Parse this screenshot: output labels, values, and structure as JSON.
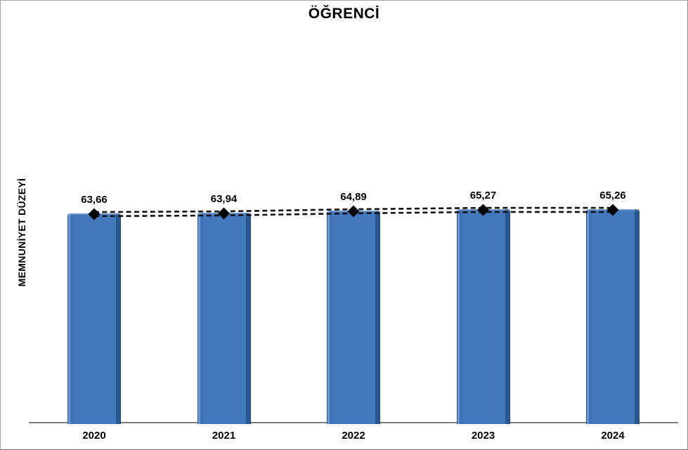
{
  "chart_data": {
    "type": "bar",
    "title": "ÖĞRENCİ",
    "ylabel": "MEMNUNİYET DÜZEYİ",
    "xlabel": "",
    "categories": [
      "2020",
      "2021",
      "2022",
      "2023",
      "2024"
    ],
    "values": [
      63.66,
      63.94,
      64.89,
      65.27,
      65.26
    ],
    "value_labels": [
      "63,66",
      "63,94",
      "64,89",
      "65,27",
      "65,26"
    ],
    "overlay_line": {
      "type": "line",
      "style": "double-dashed",
      "marker": "diamond",
      "values": [
        63.66,
        63.94,
        64.89,
        65.27,
        65.26
      ]
    },
    "legend": "none",
    "grid": false,
    "y_axis_ticks_visible": false,
    "colors": {
      "bar": "#4478bc",
      "bar_dark_edge": "#28568e",
      "bar_highlight": "#6d99d2",
      "line": "#111111",
      "marker": "#000000",
      "axis_line": "#7f7f7f",
      "frame_border": "#a3a3a3",
      "text": "#000000"
    }
  }
}
